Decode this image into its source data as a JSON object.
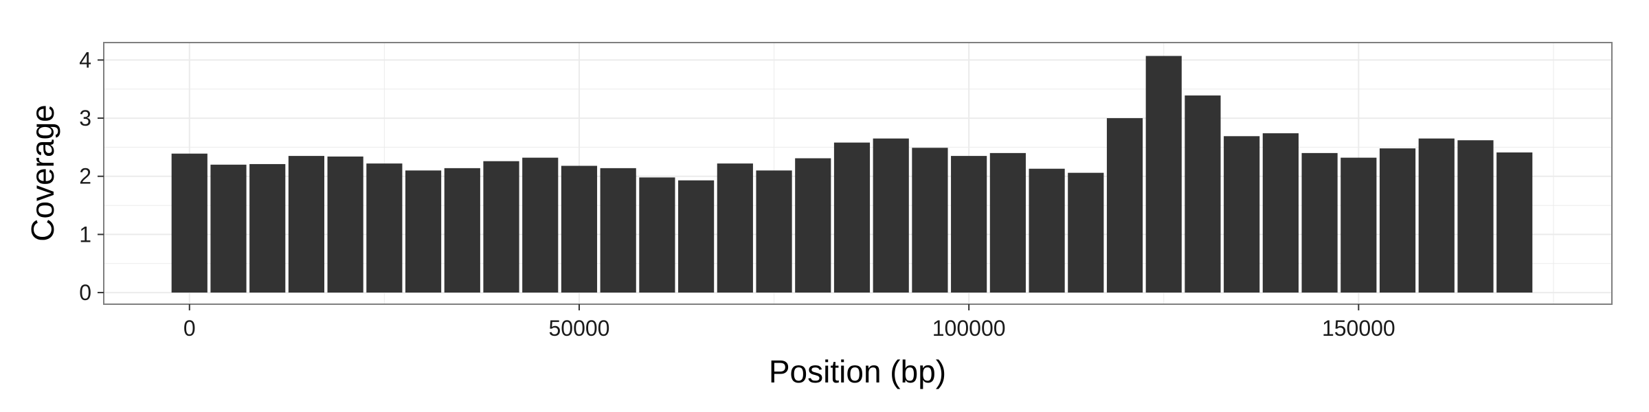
{
  "chart_data": {
    "type": "bar",
    "title": "",
    "xlabel": "Position (bp)",
    "ylabel": "Coverage",
    "xlim": [
      -11000,
      182500
    ],
    "ylim": [
      -0.2,
      4.3
    ],
    "bar_width": 4600,
    "bar_color": "#333333",
    "panel_background": "#ffffff",
    "grid_color": "#ebebeb",
    "border_color": "#7f7f7f",
    "grid": true,
    "legend": "none",
    "x_ticks": [
      0,
      50000,
      100000,
      150000
    ],
    "x_tick_labels": [
      "0",
      "50000",
      "100000",
      "150000"
    ],
    "y_ticks": [
      0,
      1,
      2,
      3,
      4
    ],
    "y_tick_labels": [
      "0",
      "1",
      "2",
      "3",
      "4"
    ],
    "x": [
      0,
      5000,
      10000,
      15000,
      20000,
      25000,
      30000,
      35000,
      40000,
      45000,
      50000,
      55000,
      60000,
      65000,
      70000,
      75000,
      80000,
      85000,
      90000,
      95000,
      100000,
      105000,
      110000,
      115000,
      120000,
      125000,
      130000,
      135000,
      140000,
      145000,
      150000,
      155000,
      160000,
      165000,
      170000
    ],
    "values": [
      2.39,
      2.2,
      2.21,
      2.35,
      2.34,
      2.22,
      2.1,
      2.14,
      2.26,
      2.32,
      2.18,
      2.14,
      1.98,
      1.93,
      2.22,
      2.1,
      2.31,
      2.58,
      2.65,
      2.49,
      2.35,
      2.4,
      2.13,
      2.06,
      3.0,
      4.07,
      3.39,
      2.69,
      2.74,
      2.4,
      2.32,
      2.48,
      2.65,
      2.62,
      2.41
    ]
  }
}
